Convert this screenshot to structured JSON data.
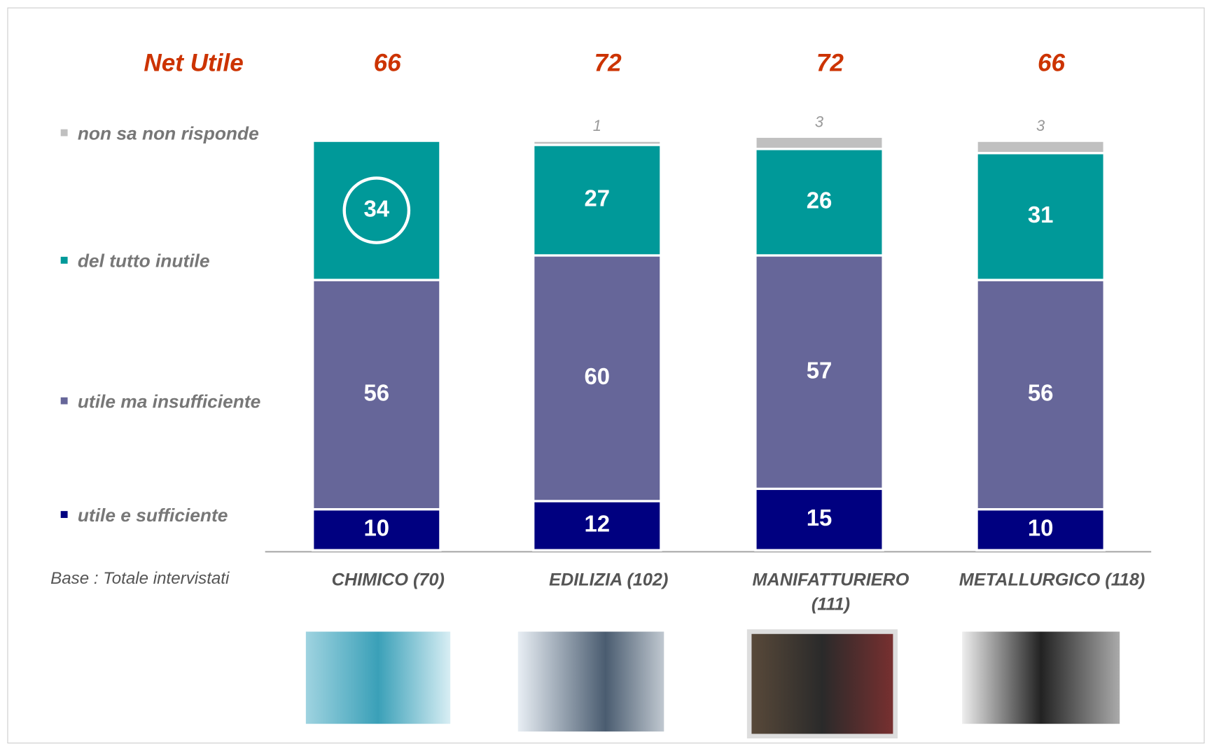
{
  "chart_data": {
    "type": "stacked-bar",
    "net_label": "Net Utile",
    "net_values": [
      66,
      72,
      72,
      66
    ],
    "base_label": "Base : Totale intervistati",
    "categories": [
      "CHIMICO (70)",
      "EDILIZIA (102)",
      "MANIFATTURIERO (111)",
      "METALLURGICO (118)"
    ],
    "series": [
      {
        "name": "utile e sufficiente",
        "color": "#000080",
        "values": [
          10,
          12,
          15,
          10
        ]
      },
      {
        "name": "utile ma insufficiente",
        "color": "#666699",
        "values": [
          56,
          60,
          57,
          56
        ]
      },
      {
        "name": "del tutto inutile",
        "color": "#009999",
        "values": [
          34,
          27,
          26,
          31
        ]
      },
      {
        "name": "non sa non risponde",
        "color": "#c0c0c0",
        "values": [
          null,
          1,
          3,
          3
        ]
      }
    ]
  }
}
